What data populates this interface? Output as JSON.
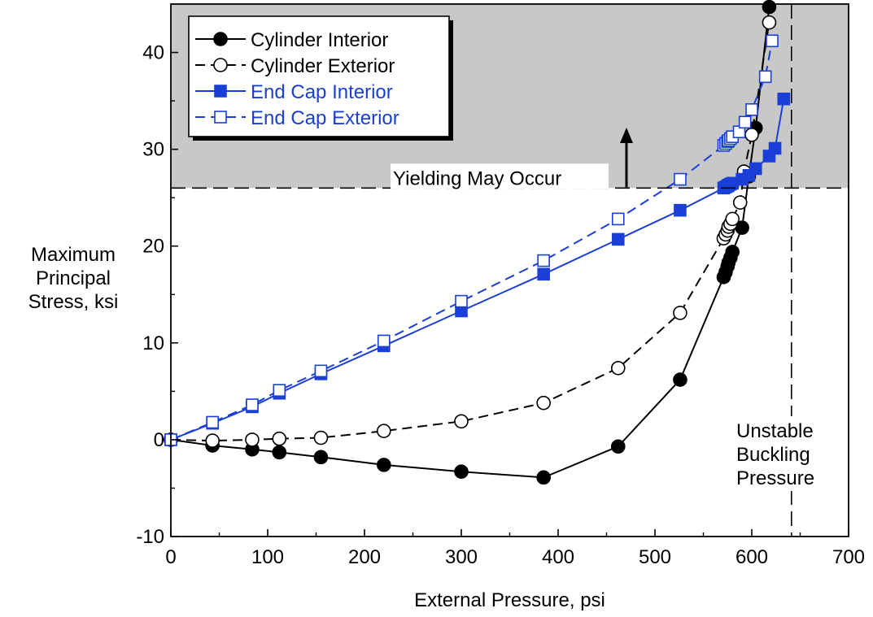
{
  "chart_data": {
    "type": "line",
    "xlabel": "External Pressure, psi",
    "ylabel_lines": [
      "Maximum",
      "Principal",
      "Stress, ksi"
    ],
    "xlim": [
      0,
      700
    ],
    "ylim": [
      -10,
      45
    ],
    "x_ticks": [
      0,
      100,
      200,
      300,
      400,
      500,
      600,
      700
    ],
    "y_ticks": [
      -10,
      0,
      10,
      20,
      30,
      40
    ],
    "grid": false,
    "legend_position": "top-left",
    "yield_stress": 26,
    "yield_label": "Yielding May Occur",
    "buckling_pressure": 641,
    "buckling_label_lines": [
      "Unstable",
      "Buckling",
      "Pressure"
    ],
    "colors": {
      "black": "#000000",
      "blue": "#1a3fd6",
      "shade": "#c8c8c8"
    },
    "series": [
      {
        "name": "Cylinder Interior",
        "color": "#000000",
        "dashed": false,
        "marker": "circle",
        "filled": true,
        "x": [
          0,
          43,
          84,
          112,
          155,
          220,
          300,
          385,
          462,
          526,
          571,
          573,
          575,
          576,
          578,
          580,
          590,
          597,
          604,
          618
        ],
        "y": [
          0,
          -0.6,
          -1.0,
          -1.3,
          -1.8,
          -2.6,
          -3.3,
          -3.9,
          -0.7,
          6.2,
          16.8,
          17.3,
          17.9,
          18.3,
          18.8,
          19.4,
          21.9,
          27.2,
          32.2,
          44.7
        ]
      },
      {
        "name": "Cylinder Exterior",
        "color": "#000000",
        "dashed": true,
        "marker": "circle",
        "filled": false,
        "x": [
          0,
          43,
          84,
          112,
          155,
          220,
          300,
          385,
          462,
          526,
          571,
          573,
          575,
          576,
          578,
          580,
          588,
          592,
          600,
          618
        ],
        "y": [
          0,
          -0.1,
          0.0,
          0.1,
          0.2,
          0.9,
          1.9,
          3.8,
          7.4,
          13.1,
          20.8,
          21.2,
          21.6,
          22.0,
          22.3,
          22.8,
          24.5,
          27.7,
          31.5,
          43.1
        ]
      },
      {
        "name": "End Cap Interior",
        "color": "#1a3fd6",
        "dashed": false,
        "marker": "square",
        "filled": true,
        "x": [
          0,
          43,
          84,
          112,
          155,
          220,
          300,
          385,
          462,
          526,
          571,
          573,
          575,
          576,
          578,
          580,
          590,
          597,
          604,
          618,
          624,
          633
        ],
        "y": [
          0,
          1.7,
          3.4,
          4.8,
          6.8,
          9.7,
          13.3,
          17.1,
          20.7,
          23.7,
          26.0,
          26.1,
          26.2,
          26.3,
          26.4,
          26.5,
          26.9,
          27.3,
          28.0,
          29.3,
          30.1,
          35.2
        ]
      },
      {
        "name": "End Cap Exterior",
        "color": "#1a3fd6",
        "dashed": true,
        "marker": "square",
        "filled": false,
        "x": [
          0,
          43,
          84,
          112,
          155,
          220,
          300,
          385,
          462,
          526,
          571,
          573,
          575,
          576,
          578,
          580,
          587,
          593,
          600,
          614,
          621
        ],
        "y": [
          0,
          1.8,
          3.6,
          5.1,
          7.1,
          10.2,
          14.3,
          18.5,
          22.8,
          26.9,
          30.4,
          30.6,
          30.8,
          30.9,
          31.1,
          31.3,
          31.8,
          32.8,
          34.1,
          37.5,
          41.2
        ]
      }
    ]
  }
}
